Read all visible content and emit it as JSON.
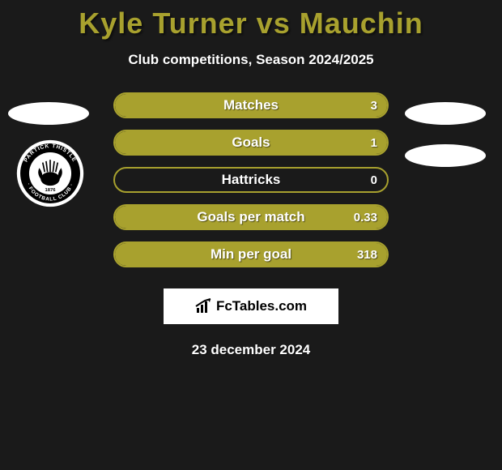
{
  "title": "Kyle Turner vs Mauchin",
  "title_color": "#a8a12e",
  "subtitle": "Club competitions, Season 2024/2025",
  "background_color": "#1a1a1a",
  "text_color": "#ffffff",
  "bar_color": "#a8a12e",
  "bar_border_color": "#a8a12e",
  "club_badge": {
    "name": "Partick Thistle Football Club",
    "founded": "1876",
    "ring_color": "#ffffff",
    "inner_color": "#000000"
  },
  "stats": [
    {
      "label": "Matches",
      "value": "3",
      "fill_pct": 100
    },
    {
      "label": "Goals",
      "value": "1",
      "fill_pct": 100
    },
    {
      "label": "Hattricks",
      "value": "0",
      "fill_pct": 0
    },
    {
      "label": "Goals per match",
      "value": "0.33",
      "fill_pct": 100
    },
    {
      "label": "Min per goal",
      "value": "318",
      "fill_pct": 100
    }
  ],
  "footer_brand": "FcTables.com",
  "date_text": "23 december 2024"
}
